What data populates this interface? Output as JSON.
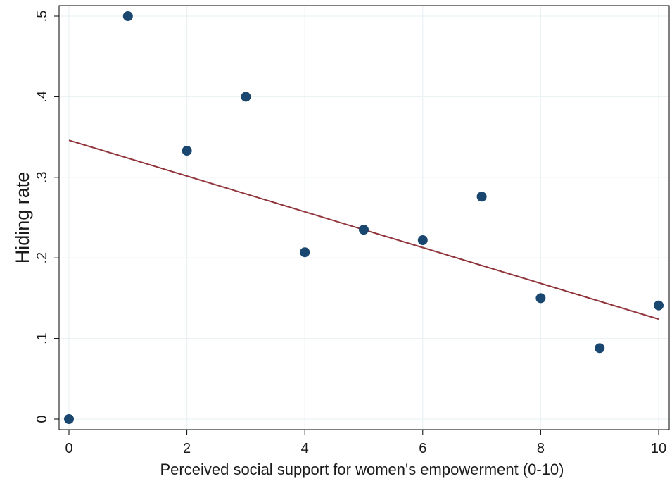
{
  "chart_data": {
    "type": "scatter",
    "title": "",
    "xlabel": "Perceived social support for women's empowerment (0-10)",
    "ylabel": "Hiding rate",
    "xlim": [
      0,
      10
    ],
    "ylim": [
      0,
      0.5
    ],
    "x_ticks": [
      {
        "value": 0,
        "label": "0"
      },
      {
        "value": 2,
        "label": "2"
      },
      {
        "value": 4,
        "label": "4"
      },
      {
        "value": 6,
        "label": "6"
      },
      {
        "value": 8,
        "label": "8"
      },
      {
        "value": 10,
        "label": "10"
      }
    ],
    "y_ticks": [
      {
        "value": 0,
        "label": "0"
      },
      {
        "value": 0.1,
        "label": ".1"
      },
      {
        "value": 0.2,
        "label": ".2"
      },
      {
        "value": 0.3,
        "label": ".3"
      },
      {
        "value": 0.4,
        "label": ".4"
      },
      {
        "value": 0.5,
        "label": ".5"
      }
    ],
    "grid": true,
    "legend": "none",
    "points": [
      {
        "x": 0,
        "y": 0.0
      },
      {
        "x": 1,
        "y": 0.5
      },
      {
        "x": 2,
        "y": 0.333
      },
      {
        "x": 3,
        "y": 0.4
      },
      {
        "x": 4,
        "y": 0.207
      },
      {
        "x": 5,
        "y": 0.235
      },
      {
        "x": 6,
        "y": 0.222
      },
      {
        "x": 7,
        "y": 0.276
      },
      {
        "x": 8,
        "y": 0.15
      },
      {
        "x": 9,
        "y": 0.088
      },
      {
        "x": 10,
        "y": 0.141
      }
    ],
    "fit_line": {
      "x": [
        0,
        10
      ],
      "y": [
        0.346,
        0.124
      ]
    },
    "colors": {
      "point": "#1a476f",
      "fit_line": "#90353b",
      "grid": "#eaf2f3",
      "axis": "#000000"
    }
  }
}
